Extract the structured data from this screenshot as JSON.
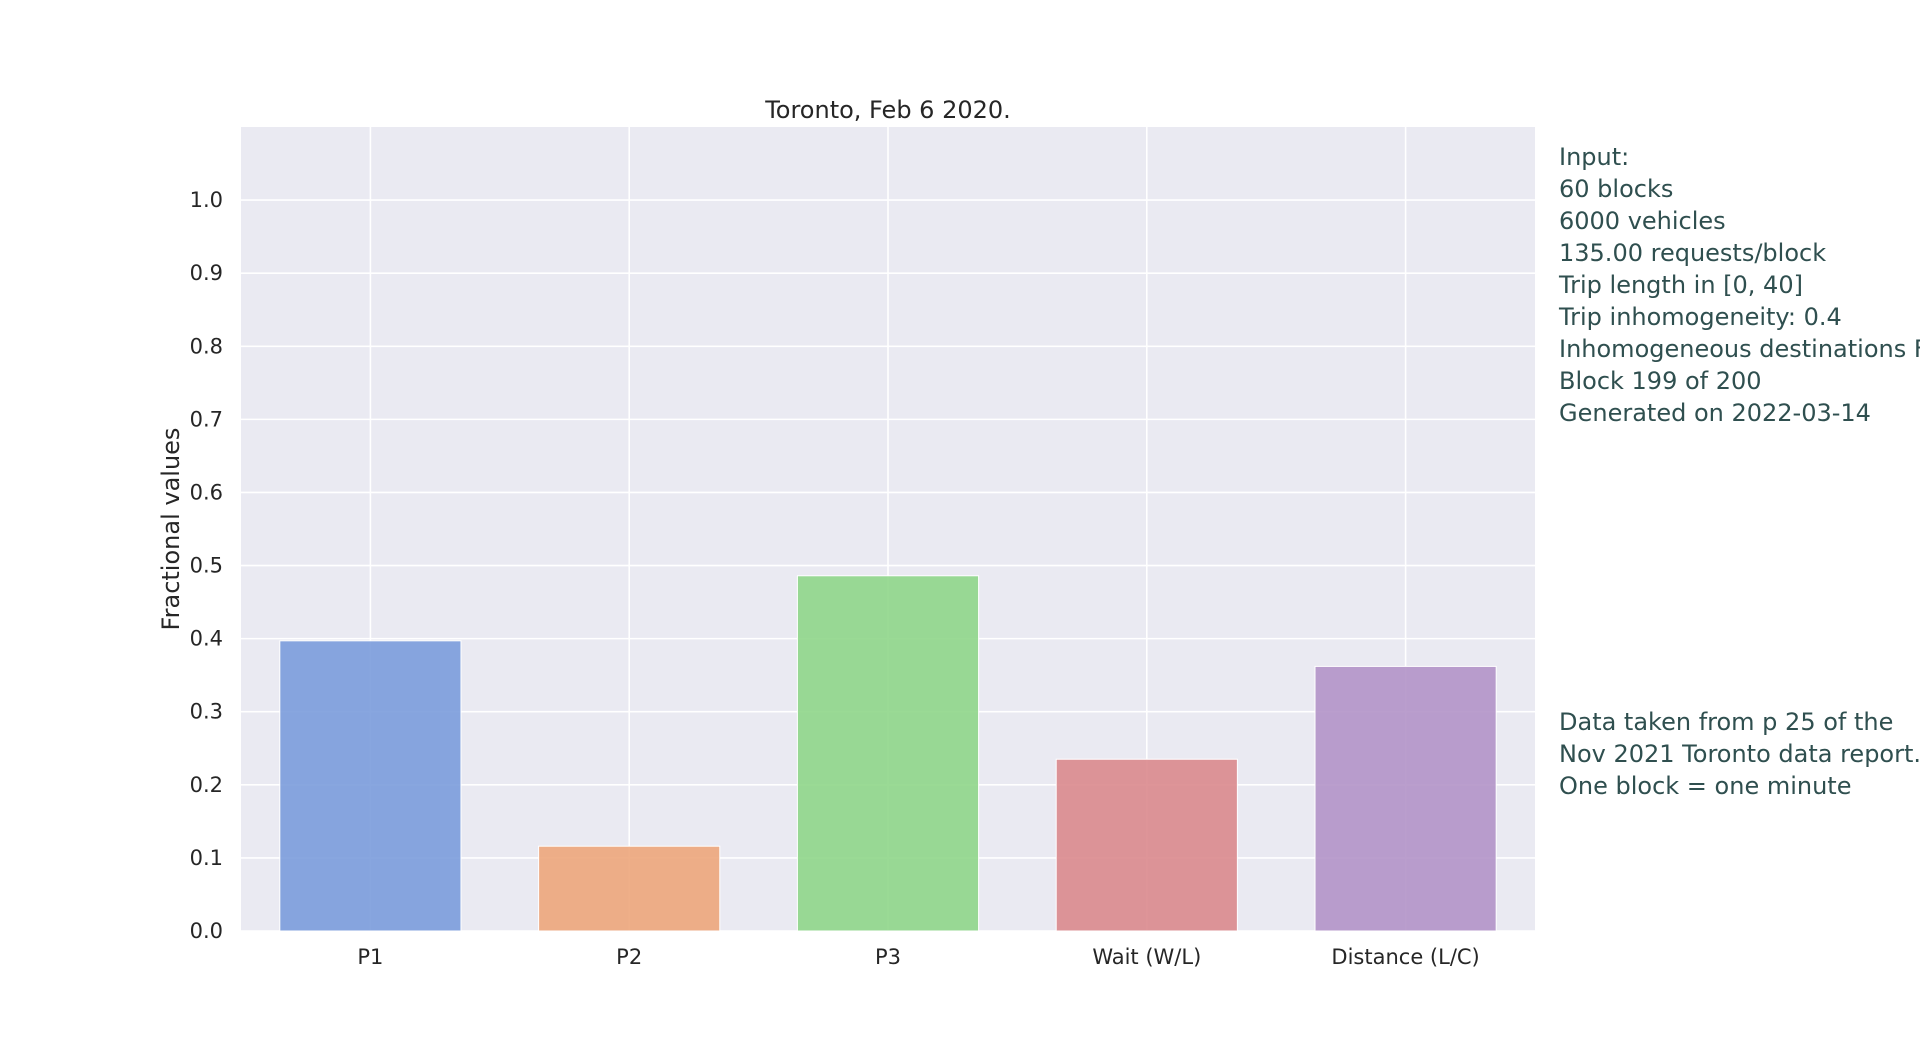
{
  "chart_data": {
    "type": "bar",
    "title": "Toronto, Feb 6 2020.",
    "xlabel": "",
    "ylabel": "Fractional values",
    "categories": [
      "P1",
      "P2",
      "P3",
      "Wait (W/L)",
      "Distance (L/C)"
    ],
    "values": [
      0.397,
      0.116,
      0.486,
      0.235,
      0.362
    ],
    "colors": [
      "#7b9cdc",
      "#eda67b",
      "#8fd68a",
      "#da8a8d",
      "#b293c8"
    ],
    "ylim": [
      0,
      1.1
    ],
    "yticks": [
      "0.0",
      "0.1",
      "0.2",
      "0.3",
      "0.4",
      "0.5",
      "0.6",
      "0.7",
      "0.8",
      "0.9",
      "1.0"
    ],
    "grid": true,
    "style": {
      "plot_background": "#eaeaf2",
      "gridline_color": "#ffffff",
      "annotation_color": "#2f4f4f"
    }
  },
  "annotations": {
    "input_lines": [
      "Input:",
      "60 blocks",
      "6000 vehicles",
      "135.00 requests/block",
      "Trip length in [0, 40]",
      "Trip inhomogeneity: 0.4",
      "Inhomogeneous destinations Fal",
      "Block 199 of 200",
      "Generated on 2022-03-14"
    ],
    "source_lines": [
      "Data taken from p 25 of the",
      "Nov 2021 Toronto data report.",
      "One block = one minute"
    ]
  }
}
